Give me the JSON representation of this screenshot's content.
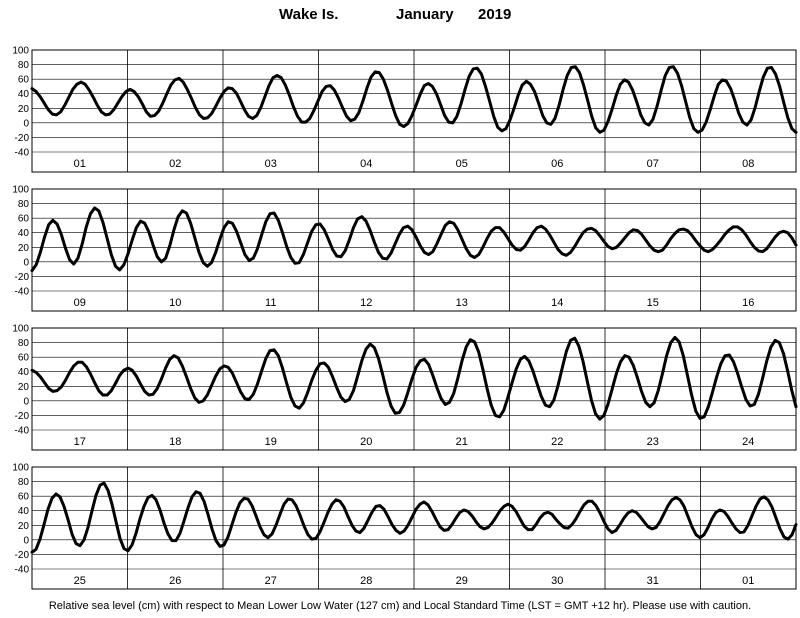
{
  "title": {
    "station": "Wake Is.",
    "month": "January",
    "year": "2019"
  },
  "footnote": "Relative sea level (cm) with respect to Mean Lower Low Water (127 cm) and Local Standard Time (LST = GMT +12 hr). Please use with caution.",
  "chart_data": {
    "type": "line",
    "title": "Wake Is.          January   2019",
    "xlabel": "",
    "ylabel": "",
    "units": "cm",
    "ylim": [
      -40,
      100
    ],
    "yticks": [
      -40,
      -20,
      0,
      20,
      40,
      60,
      80,
      100
    ],
    "grid": true,
    "panels": [
      {
        "days": [
          "01",
          "02",
          "03",
          "04",
          "05",
          "06",
          "07",
          "08"
        ],
        "hourly_cm": [
          47,
          43,
          36,
          27,
          18,
          12,
          11,
          15,
          24,
          35,
          46,
          53,
          56,
          53,
          45,
          35,
          24,
          15,
          11,
          12,
          18,
          27,
          36,
          43,
          46,
          43,
          36,
          26,
          15,
          9,
          10,
          16,
          27,
          40,
          52,
          59,
          61,
          56,
          46,
          34,
          21,
          11,
          6,
          7,
          13,
          23,
          34,
          43,
          48,
          47,
          41,
          30,
          18,
          9,
          6,
          10,
          21,
          36,
          51,
          62,
          65,
          62,
          52,
          38,
          22,
          9,
          1,
          1,
          6,
          17,
          30,
          43,
          50,
          51,
          45,
          34,
          21,
          9,
          3,
          5,
          14,
          30,
          48,
          63,
          70,
          69,
          60,
          45,
          27,
          10,
          -2,
          -5,
          -1,
          10,
          24,
          39,
          51,
          54,
          50,
          40,
          25,
          10,
          1,
          0,
          9,
          26,
          46,
          64,
          74,
          75,
          67,
          50,
          30,
          9,
          -6,
          -11,
          -8,
          4,
          20,
          38,
          52,
          57,
          53,
          43,
          27,
          10,
          0,
          -2,
          6,
          24,
          46,
          65,
          76,
          77,
          69,
          52,
          31,
          9,
          -7,
          -13,
          -10,
          2,
          19,
          38,
          53,
          59,
          56,
          45,
          29,
          11,
          0,
          -3,
          5,
          23,
          45,
          65,
          76,
          77,
          68,
          51,
          29,
          7,
          -8,
          -13,
          -10,
          1,
          18,
          37,
          53,
          59,
          57,
          47,
          31,
          13,
          1,
          -3,
          4,
          21,
          43,
          63,
          75,
          76,
          67,
          50,
          28,
          7,
          -8,
          -13
        ]
      },
      {
        "days": [
          "09",
          "10",
          "11",
          "12",
          "13",
          "14",
          "15",
          "16"
        ],
        "hourly_cm": [
          -12,
          -4,
          13,
          34,
          51,
          57,
          52,
          38,
          19,
          3,
          -3,
          5,
          24,
          48,
          66,
          74,
          70,
          54,
          32,
          10,
          -6,
          -11,
          -4,
          11,
          30,
          47,
          56,
          53,
          41,
          23,
          7,
          0,
          5,
          22,
          44,
          62,
          70,
          67,
          53,
          33,
          13,
          -1,
          -6,
          -1,
          13,
          31,
          47,
          55,
          53,
          42,
          26,
          10,
          2,
          5,
          18,
          37,
          55,
          66,
          67,
          57,
          40,
          21,
          6,
          -2,
          -1,
          10,
          26,
          42,
          51,
          52,
          44,
          31,
          17,
          8,
          7,
          15,
          30,
          47,
          59,
          62,
          56,
          43,
          27,
          13,
          5,
          4,
          12,
          25,
          38,
          47,
          49,
          44,
          34,
          22,
          13,
          10,
          14,
          25,
          38,
          50,
          55,
          53,
          44,
          31,
          18,
          9,
          6,
          10,
          20,
          32,
          42,
          47,
          47,
          41,
          32,
          23,
          17,
          16,
          21,
          30,
          40,
          47,
          49,
          45,
          37,
          27,
          17,
          11,
          9,
          13,
          21,
          31,
          40,
          45,
          46,
          43,
          36,
          28,
          21,
          18,
          20,
          26,
          33,
          40,
          44,
          43,
          38,
          30,
          22,
          16,
          14,
          16,
          23,
          32,
          39,
          44,
          45,
          43,
          37,
          29,
          22,
          16,
          14,
          17,
          23,
          30,
          38,
          44,
          48,
          48,
          44,
          37,
          28,
          20,
          15,
          14,
          18,
          26,
          34,
          40,
          42,
          40,
          33,
          23
        ]
      },
      {
        "days": [
          "17",
          "18",
          "19",
          "20",
          "21",
          "22",
          "23",
          "24"
        ],
        "hourly_cm": [
          42,
          39,
          33,
          25,
          17,
          13,
          14,
          19,
          28,
          39,
          48,
          53,
          53,
          47,
          37,
          25,
          14,
          8,
          8,
          14,
          24,
          35,
          42,
          45,
          42,
          34,
          23,
          13,
          8,
          9,
          17,
          30,
          45,
          57,
          62,
          59,
          48,
          33,
          17,
          4,
          -2,
          0,
          8,
          21,
          34,
          44,
          48,
          46,
          38,
          25,
          12,
          3,
          2,
          9,
          23,
          41,
          58,
          69,
          70,
          62,
          45,
          24,
          5,
          -7,
          -10,
          -3,
          11,
          28,
          42,
          51,
          52,
          46,
          33,
          18,
          5,
          -1,
          2,
          14,
          34,
          55,
          71,
          78,
          73,
          58,
          36,
          12,
          -7,
          -17,
          -16,
          -6,
          11,
          30,
          46,
          55,
          57,
          50,
          35,
          18,
          3,
          -5,
          -2,
          10,
          31,
          55,
          74,
          84,
          81,
          67,
          43,
          17,
          -6,
          -20,
          -22,
          -13,
          5,
          25,
          44,
          57,
          61,
          55,
          41,
          23,
          6,
          -6,
          -8,
          1,
          21,
          45,
          68,
          83,
          86,
          75,
          54,
          27,
          1,
          -18,
          -25,
          -20,
          -4,
          17,
          38,
          54,
          62,
          60,
          49,
          32,
          13,
          -2,
          -8,
          -3,
          14,
          37,
          62,
          80,
          87,
          81,
          62,
          35,
          8,
          -14,
          -24,
          -22,
          -8,
          12,
          33,
          51,
          62,
          63,
          54,
          38,
          19,
          2,
          -7,
          -5,
          9,
          31,
          55,
          74,
          83,
          80,
          65,
          41,
          14,
          -8
        ]
      },
      {
        "days": [
          "25",
          "26",
          "27",
          "28",
          "29",
          "30",
          "31",
          "01"
        ],
        "hourly_cm": [
          -17,
          -13,
          1,
          21,
          42,
          57,
          63,
          59,
          46,
          28,
          8,
          -5,
          -8,
          0,
          17,
          40,
          61,
          75,
          78,
          68,
          49,
          25,
          2,
          -12,
          -15,
          -7,
          9,
          29,
          46,
          58,
          61,
          55,
          41,
          23,
          8,
          -1,
          -1,
          9,
          26,
          44,
          59,
          66,
          64,
          53,
          35,
          15,
          -1,
          -9,
          -7,
          4,
          21,
          38,
          51,
          57,
          56,
          47,
          33,
          18,
          7,
          3,
          8,
          20,
          35,
          49,
          56,
          55,
          47,
          34,
          19,
          7,
          1,
          2,
          11,
          24,
          38,
          49,
          55,
          53,
          45,
          32,
          20,
          12,
          10,
          16,
          27,
          38,
          46,
          47,
          42,
          32,
          21,
          13,
          9,
          12,
          20,
          31,
          42,
          49,
          52,
          48,
          39,
          28,
          18,
          13,
          14,
          21,
          30,
          38,
          41,
          39,
          33,
          25,
          18,
          15,
          17,
          23,
          31,
          40,
          46,
          49,
          46,
          39,
          29,
          19,
          14,
          14,
          21,
          30,
          36,
          38,
          35,
          28,
          22,
          17,
          16,
          21,
          29,
          39,
          48,
          53,
          53,
          47,
          37,
          25,
          15,
          10,
          13,
          21,
          30,
          37,
          40,
          38,
          32,
          25,
          18,
          15,
          17,
          25,
          36,
          47,
          55,
          58,
          55,
          46,
          32,
          18,
          7,
          3,
          7,
          17,
          29,
          38,
          41,
          39,
          32,
          23,
          15,
          10,
          11,
          20,
          33,
          46,
          56,
          59,
          55,
          45,
          30,
          15,
          4,
          1,
          7,
          21
        ]
      }
    ]
  }
}
